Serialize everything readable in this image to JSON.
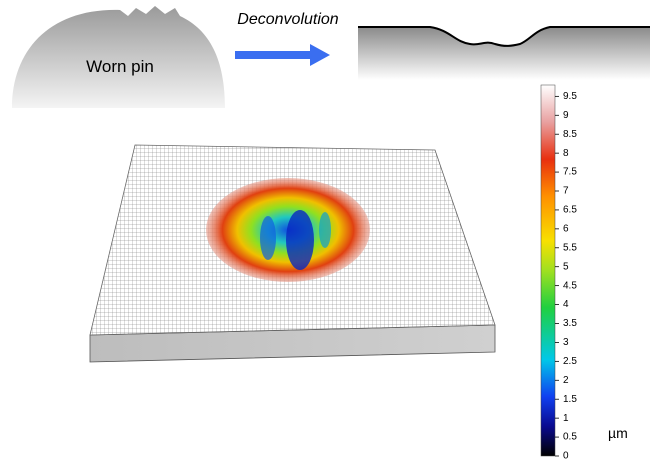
{
  "diagram": {
    "pin_label": "Worn pin",
    "arrow_label": "Deconvolution"
  },
  "colorbar": {
    "lim": [
      0,
      9.8
    ],
    "ticks": [
      0,
      0.5,
      1,
      1.5,
      2,
      2.5,
      3,
      3.5,
      4,
      4.5,
      5,
      5.5,
      6,
      6.5,
      7,
      7.5,
      8,
      8.5,
      9,
      9.5
    ],
    "unit": "µm"
  }
}
